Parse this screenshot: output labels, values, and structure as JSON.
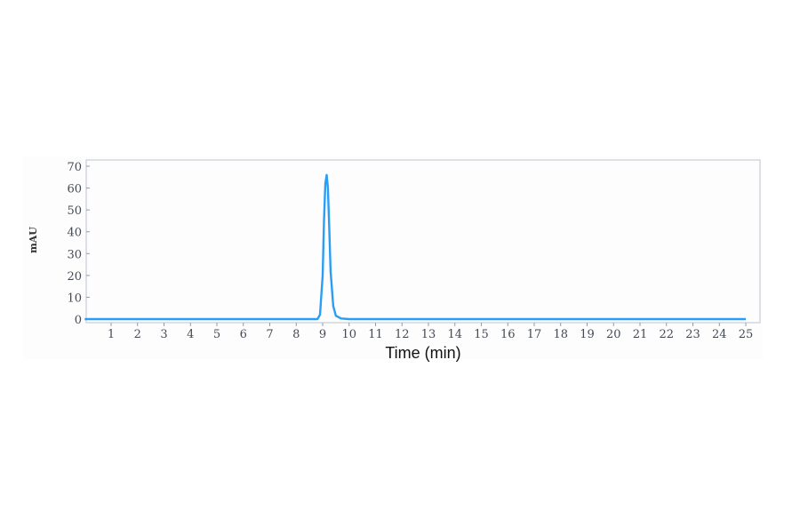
{
  "chart_data": {
    "type": "line",
    "title": "",
    "xlabel": "Time (min)",
    "ylabel": "mAU",
    "xlim": [
      0,
      25.5
    ],
    "ylim": [
      0,
      73
    ],
    "xticks": [
      "1",
      "2",
      "3",
      "4",
      "5",
      "6",
      "7",
      "8",
      "9",
      "10",
      "11",
      "12",
      "13",
      "14",
      "15",
      "16",
      "17",
      "18",
      "19",
      "20",
      "21",
      "22",
      "23",
      "24",
      "25"
    ],
    "yticks": [
      "0",
      "10",
      "20",
      "30",
      "40",
      "50",
      "60",
      "70"
    ],
    "grid": false,
    "series": [
      {
        "color": "#2a9df4",
        "x": [
          0,
          8.8,
          8.9,
          9.0,
          9.05,
          9.1,
          9.15,
          9.2,
          9.25,
          9.3,
          9.4,
          9.5,
          9.7,
          10,
          25
        ],
        "y": [
          0,
          0,
          2,
          20,
          45,
          62,
          66,
          60,
          42,
          22,
          6,
          1.5,
          0.3,
          0,
          0
        ]
      }
    ]
  }
}
